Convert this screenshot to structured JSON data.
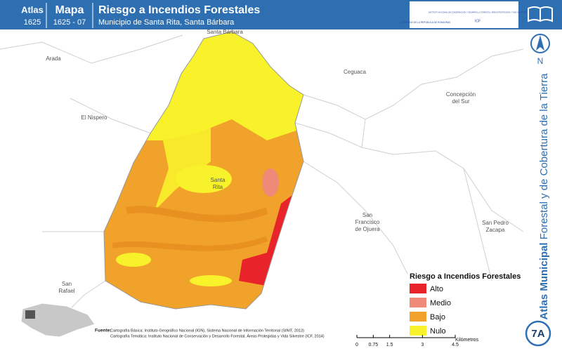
{
  "header": {
    "atlas_label": "Atlas",
    "atlas_number": "1625",
    "map_label": "Mapa",
    "map_number": "1625 - 07",
    "title": "Riesgo a Incendios Forestales",
    "subtitle": "Municipio de Santa Rita, Santa Bárbara",
    "logo_left": "GOBIERNO DE LA REPÚBLICA DE HONDURAS",
    "logo_right": "INSTITUTO NACIONAL DE CONSERVACIÓN Y DESARROLLO FORESTAL, ÁREAS PROTEGIDAS Y VIDA SILVESTRE",
    "logo_acronym": "ICF"
  },
  "side": {
    "title_bold": "Atlas Municipal",
    "title_rest": "Forestal y de Cobertura de la Tierra",
    "north": "N",
    "sheet": "7A"
  },
  "places": [
    {
      "lines": [
        "Santa Bárbara"
      ]
    },
    {
      "lines": [
        "Arada"
      ]
    },
    {
      "lines": [
        "Ceguaca"
      ]
    },
    {
      "lines": [
        "Concepción",
        "del Sur"
      ]
    },
    {
      "lines": [
        "El Nispero"
      ]
    },
    {
      "lines": [
        "Santa",
        "Rita"
      ]
    },
    {
      "lines": [
        "San",
        "Francisco",
        "de Ojuera"
      ]
    },
    {
      "lines": [
        "San Pedro",
        "Zacapa"
      ]
    },
    {
      "lines": [
        "San",
        "Rafael"
      ]
    }
  ],
  "legend": {
    "title": "Riesgo a Incendios Forestales",
    "items": [
      {
        "label": "Alto",
        "color": "#e8242a"
      },
      {
        "label": "Medio",
        "color": "#f08a78"
      },
      {
        "label": "Bajo",
        "color": "#f0a22a"
      },
      {
        "label": "Nulo",
        "color": "#f8f22a"
      }
    ]
  },
  "source": {
    "label": "Fuente:",
    "lines": [
      "Cartografía Básica: Instituto Geográfico Nacional (IGN), Sistema Nacional de Información Territorial (SINIT, 2013)",
      "Cartografía Temática: Instituto Nacional de Conservación y Desarrollo Forestal, Áreas Protegidas y Vida Silvestre (ICF, 2014)"
    ]
  },
  "scale": {
    "unit": "Kilómetros",
    "ticks": [
      0,
      0.75,
      1.5,
      3,
      4.5
    ]
  }
}
